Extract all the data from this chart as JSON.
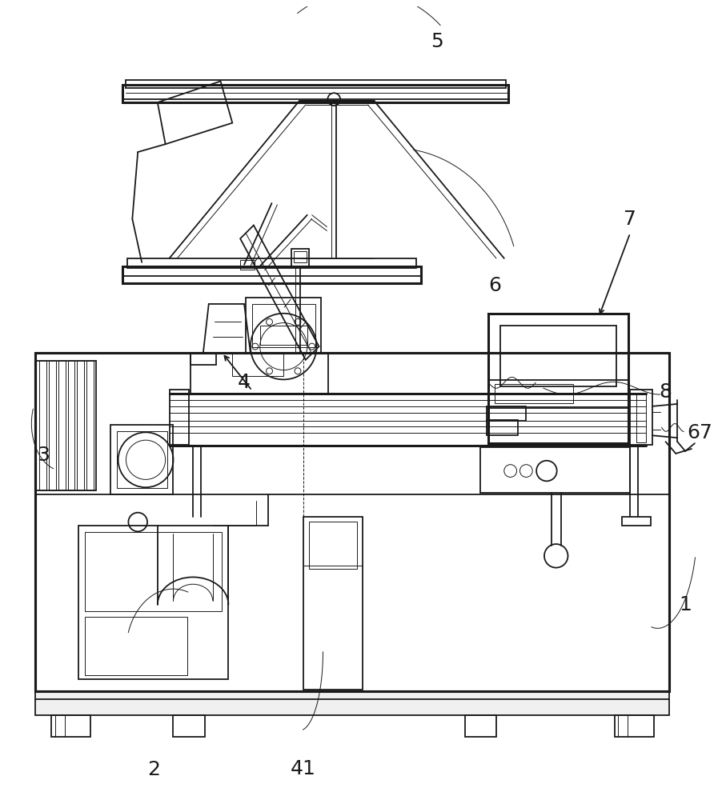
{
  "bg_color": "#ffffff",
  "lc": "#1a1a1a",
  "lw": 1.3,
  "lw_t": 0.7,
  "lw_th": 2.2,
  "figsize": [
    8.92,
    10.0
  ],
  "dpi": 100
}
